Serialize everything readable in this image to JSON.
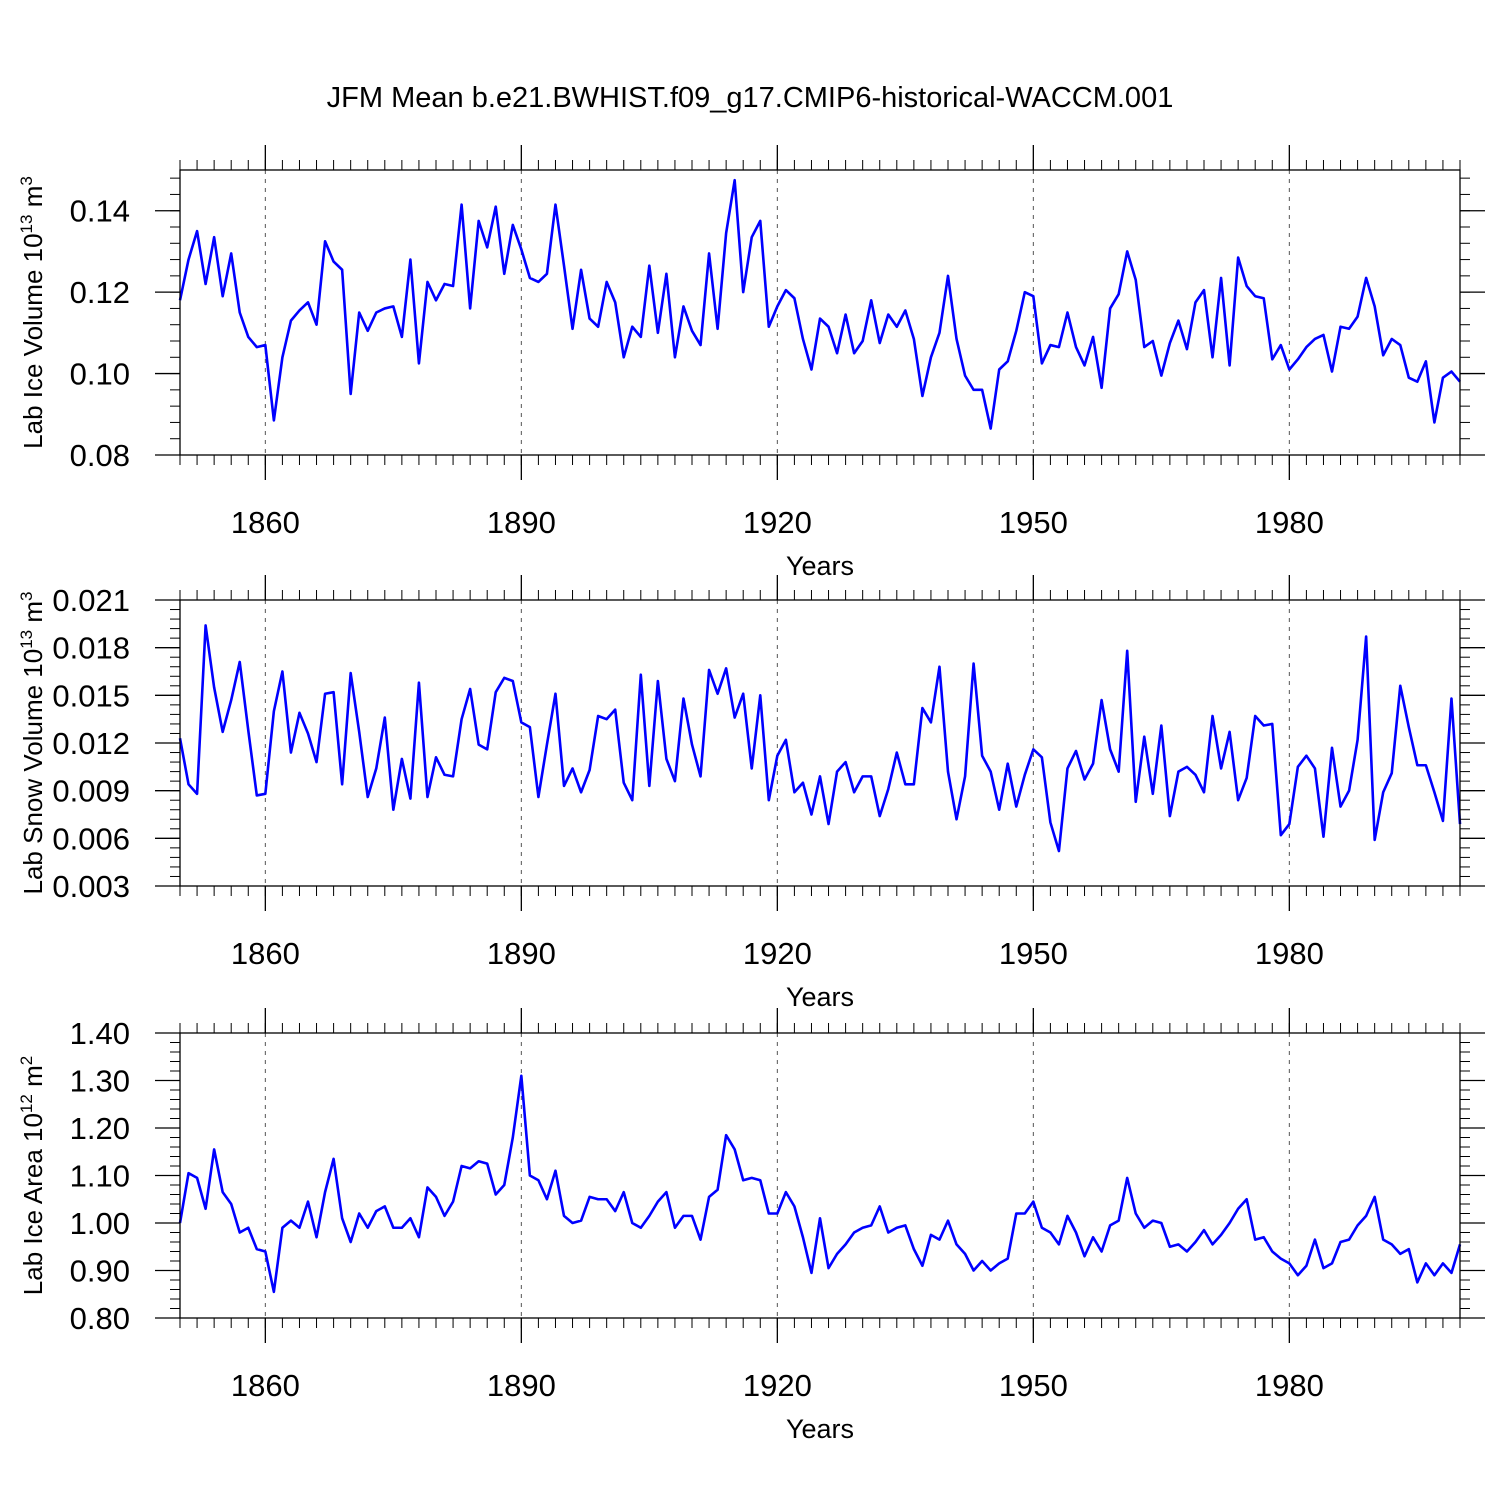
{
  "title": "JFM Mean b.e21.BWHIST.f09_g17.CMIP6-historical-WACCM.001",
  "colors": {
    "series": "#0000ff",
    "axis": "#000000",
    "gridline": "#555555"
  },
  "chart_data": [
    {
      "type": "line",
      "ylabel": "Lab Ice Volume 10",
      "ylabel_exp": "13",
      "ylabel_unit": " m",
      "ylabel_unit_exp": "3",
      "xlabel": "Years",
      "xlim": [
        1850,
        2000
      ],
      "ylim": [
        0.08,
        0.15
      ],
      "xticks": [
        1860,
        1890,
        1920,
        1950,
        1980
      ],
      "xtick_labels": [
        "1860",
        "1890",
        "1920",
        "1950",
        "1980"
      ],
      "yticks": [
        0.08,
        0.1,
        0.12,
        0.14
      ],
      "ytick_labels": [
        "0.08",
        "0.10",
        "0.12",
        "0.14"
      ],
      "x_start": 1850,
      "values": [
        0.118,
        0.128,
        0.135,
        0.122,
        0.1335,
        0.119,
        0.1295,
        0.115,
        0.109,
        0.1065,
        0.107,
        0.0885,
        0.104,
        0.113,
        0.1155,
        0.1175,
        0.112,
        0.1325,
        0.1275,
        0.1255,
        0.095,
        0.115,
        0.1105,
        0.115,
        0.116,
        0.1165,
        0.109,
        0.128,
        0.1025,
        0.1225,
        0.118,
        0.122,
        0.1215,
        0.1415,
        0.116,
        0.1375,
        0.131,
        0.141,
        0.1245,
        0.1365,
        0.1305,
        0.1235,
        0.1225,
        0.1245,
        0.1415,
        0.1265,
        0.111,
        0.1255,
        0.1135,
        0.1115,
        0.1225,
        0.1175,
        0.104,
        0.1115,
        0.109,
        0.1265,
        0.11,
        0.1245,
        0.104,
        0.1165,
        0.1105,
        0.107,
        0.1295,
        0.111,
        0.1345,
        0.1475,
        0.12,
        0.1335,
        0.1375,
        0.1115,
        0.1165,
        0.1205,
        0.1185,
        0.1085,
        0.101,
        0.1135,
        0.1115,
        0.105,
        0.1145,
        0.105,
        0.108,
        0.118,
        0.1075,
        0.1145,
        0.1115,
        0.1155,
        0.1085,
        0.0945,
        0.104,
        0.11,
        0.124,
        0.1085,
        0.0995,
        0.096,
        0.096,
        0.0865,
        0.101,
        0.103,
        0.1105,
        0.12,
        0.119,
        0.1025,
        0.107,
        0.1065,
        0.115,
        0.1065,
        0.102,
        0.109,
        0.0965,
        0.116,
        0.1195,
        0.13,
        0.123,
        0.1065,
        0.108,
        0.0995,
        0.1075,
        0.113,
        0.106,
        0.1175,
        0.1205,
        0.104,
        0.1235,
        0.102,
        0.1285,
        0.1215,
        0.119,
        0.1185,
        0.1035,
        0.107,
        0.101,
        0.1035,
        0.1065,
        0.1085,
        0.1095,
        0.1005,
        0.1115,
        0.111,
        0.114,
        0.1235,
        0.1165,
        0.1045,
        0.1085,
        0.107,
        0.099,
        0.098,
        0.103,
        0.088,
        0.099,
        0.1005,
        0.098
      ]
    },
    {
      "type": "line",
      "ylabel": "Lab Snow Volume 10",
      "ylabel_exp": "13",
      "ylabel_unit": " m",
      "ylabel_unit_exp": "3",
      "xlabel": "Years",
      "xlim": [
        1850,
        2000
      ],
      "ylim": [
        0.003,
        0.021
      ],
      "xticks": [
        1860,
        1890,
        1920,
        1950,
        1980
      ],
      "xtick_labels": [
        "1860",
        "1890",
        "1920",
        "1950",
        "1980"
      ],
      "yticks": [
        0.003,
        0.006,
        0.009,
        0.012,
        0.015,
        0.018,
        0.021
      ],
      "ytick_labels": [
        "0.003",
        "0.006",
        "0.009",
        "0.012",
        "0.015",
        "0.018",
        "0.021"
      ],
      "x_start": 1850,
      "values": [
        0.0123,
        0.0094,
        0.0088,
        0.0194,
        0.0155,
        0.0127,
        0.0147,
        0.0171,
        0.0128,
        0.0087,
        0.0088,
        0.014,
        0.0165,
        0.0114,
        0.0139,
        0.0126,
        0.0108,
        0.0151,
        0.0152,
        0.0094,
        0.0164,
        0.0127,
        0.0086,
        0.0104,
        0.0136,
        0.0078,
        0.011,
        0.0085,
        0.0158,
        0.0086,
        0.0111,
        0.01,
        0.0099,
        0.0135,
        0.0154,
        0.0119,
        0.0116,
        0.0152,
        0.0161,
        0.0159,
        0.0133,
        0.013,
        0.0086,
        0.0119,
        0.0151,
        0.0093,
        0.0104,
        0.0089,
        0.0103,
        0.0137,
        0.0135,
        0.0141,
        0.0095,
        0.0084,
        0.0163,
        0.0093,
        0.0159,
        0.011,
        0.0096,
        0.0148,
        0.0119,
        0.0099,
        0.0166,
        0.0151,
        0.0167,
        0.0136,
        0.0151,
        0.0104,
        0.015,
        0.0084,
        0.0112,
        0.0122,
        0.0089,
        0.0095,
        0.0075,
        0.0099,
        0.0069,
        0.0102,
        0.0108,
        0.0089,
        0.0099,
        0.0099,
        0.0074,
        0.0091,
        0.0114,
        0.0094,
        0.0094,
        0.0142,
        0.0133,
        0.0168,
        0.0102,
        0.0072,
        0.0099,
        0.017,
        0.0112,
        0.0102,
        0.0078,
        0.0107,
        0.008,
        0.01,
        0.0116,
        0.0111,
        0.007,
        0.0052,
        0.0104,
        0.0115,
        0.0097,
        0.0107,
        0.0147,
        0.0116,
        0.0102,
        0.0178,
        0.0083,
        0.0124,
        0.0088,
        0.0131,
        0.0074,
        0.0102,
        0.0105,
        0.01,
        0.0089,
        0.0137,
        0.0104,
        0.0127,
        0.0084,
        0.0098,
        0.0137,
        0.0131,
        0.0132,
        0.0062,
        0.0069,
        0.0105,
        0.0112,
        0.0104,
        0.0061,
        0.0117,
        0.008,
        0.009,
        0.0122,
        0.0187,
        0.0059,
        0.0089,
        0.0101,
        0.0156,
        0.013,
        0.0106,
        0.0106,
        0.0089,
        0.0071,
        0.0148,
        0.0069
      ]
    },
    {
      "type": "line",
      "ylabel": "Lab Ice Area 10",
      "ylabel_exp": "12",
      "ylabel_unit": " m",
      "ylabel_unit_exp": "2",
      "xlabel": "Years",
      "xlim": [
        1850,
        2000
      ],
      "ylim": [
        0.8,
        1.4
      ],
      "xticks": [
        1860,
        1890,
        1920,
        1950,
        1980
      ],
      "xtick_labels": [
        "1860",
        "1890",
        "1920",
        "1950",
        "1980"
      ],
      "yticks": [
        0.8,
        0.9,
        1.0,
        1.1,
        1.2,
        1.3,
        1.4
      ],
      "ytick_labels": [
        "0.80",
        "0.90",
        "1.00",
        "1.10",
        "1.20",
        "1.30",
        "1.40"
      ],
      "x_start": 1850,
      "values": [
        1.0,
        1.105,
        1.095,
        1.03,
        1.155,
        1.065,
        1.04,
        0.98,
        0.99,
        0.945,
        0.94,
        0.855,
        0.99,
        1.005,
        0.99,
        1.045,
        0.97,
        1.065,
        1.135,
        1.01,
        0.96,
        1.02,
        0.99,
        1.025,
        1.035,
        0.99,
        0.99,
        1.01,
        0.97,
        1.075,
        1.055,
        1.015,
        1.045,
        1.12,
        1.115,
        1.13,
        1.125,
        1.06,
        1.08,
        1.18,
        1.31,
        1.1,
        1.09,
        1.05,
        1.11,
        1.015,
        1.0,
        1.005,
        1.055,
        1.05,
        1.05,
        1.025,
        1.065,
        1.0,
        0.99,
        1.015,
        1.045,
        1.065,
        0.99,
        1.015,
        1.015,
        0.965,
        1.055,
        1.07,
        1.185,
        1.155,
        1.09,
        1.095,
        1.09,
        1.02,
        1.02,
        1.065,
        1.035,
        0.97,
        0.895,
        1.01,
        0.905,
        0.935,
        0.955,
        0.98,
        0.99,
        0.995,
        1.035,
        0.98,
        0.99,
        0.995,
        0.945,
        0.91,
        0.975,
        0.965,
        1.005,
        0.955,
        0.935,
        0.9,
        0.92,
        0.9,
        0.915,
        0.925,
        1.02,
        1.02,
        1.045,
        0.99,
        0.98,
        0.955,
        1.015,
        0.98,
        0.93,
        0.97,
        0.94,
        0.995,
        1.005,
        1.095,
        1.02,
        0.99,
        1.005,
        1.0,
        0.95,
        0.955,
        0.94,
        0.96,
        0.985,
        0.955,
        0.975,
        1.0,
        1.03,
        1.05,
        0.965,
        0.97,
        0.94,
        0.925,
        0.915,
        0.89,
        0.91,
        0.965,
        0.905,
        0.915,
        0.96,
        0.965,
        0.995,
        1.015,
        1.055,
        0.965,
        0.955,
        0.935,
        0.945,
        0.875,
        0.915,
        0.89,
        0.915,
        0.895,
        0.955
      ]
    }
  ]
}
